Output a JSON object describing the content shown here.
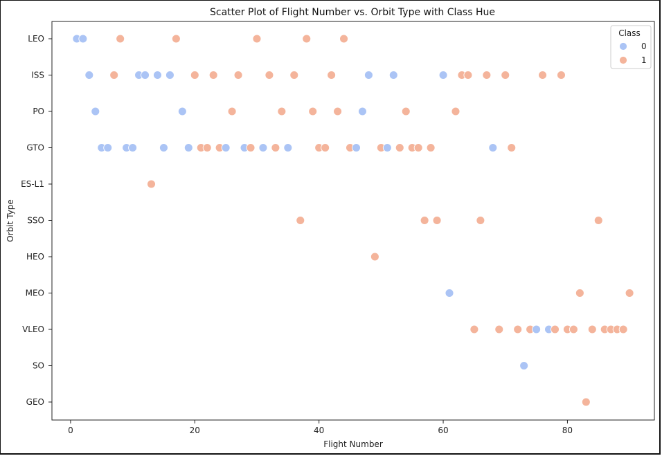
{
  "chart_data": {
    "type": "scatter",
    "title": "Scatter Plot of Flight Number vs. Orbit Type with Class Hue",
    "xlabel": "Flight Number",
    "ylabel": "Orbit Type",
    "xlim": [
      -3,
      94
    ],
    "xticks": [
      0,
      20,
      40,
      60,
      80
    ],
    "categories": [
      "LEO",
      "ISS",
      "PO",
      "GTO",
      "ES-L1",
      "SSO",
      "HEO",
      "MEO",
      "VLEO",
      "SO",
      "GEO"
    ],
    "grid": false,
    "legend": {
      "title": "Class",
      "placement": "top-right",
      "entries": [
        "0",
        "1"
      ]
    },
    "colors": {
      "0": "#abc4f5",
      "1": "#f4b49b"
    },
    "points": [
      {
        "x": 1,
        "y": "LEO",
        "class": 0
      },
      {
        "x": 2,
        "y": "LEO",
        "class": 0
      },
      {
        "x": 8,
        "y": "LEO",
        "class": 1
      },
      {
        "x": 17,
        "y": "LEO",
        "class": 1
      },
      {
        "x": 30,
        "y": "LEO",
        "class": 1
      },
      {
        "x": 38,
        "y": "LEO",
        "class": 1
      },
      {
        "x": 44,
        "y": "LEO",
        "class": 1
      },
      {
        "x": 3,
        "y": "ISS",
        "class": 0
      },
      {
        "x": 7,
        "y": "ISS",
        "class": 1
      },
      {
        "x": 11,
        "y": "ISS",
        "class": 0
      },
      {
        "x": 12,
        "y": "ISS",
        "class": 0
      },
      {
        "x": 14,
        "y": "ISS",
        "class": 0
      },
      {
        "x": 16,
        "y": "ISS",
        "class": 0
      },
      {
        "x": 20,
        "y": "ISS",
        "class": 1
      },
      {
        "x": 23,
        "y": "ISS",
        "class": 1
      },
      {
        "x": 27,
        "y": "ISS",
        "class": 1
      },
      {
        "x": 32,
        "y": "ISS",
        "class": 1
      },
      {
        "x": 36,
        "y": "ISS",
        "class": 1
      },
      {
        "x": 42,
        "y": "ISS",
        "class": 1
      },
      {
        "x": 48,
        "y": "ISS",
        "class": 0
      },
      {
        "x": 52,
        "y": "ISS",
        "class": 0
      },
      {
        "x": 60,
        "y": "ISS",
        "class": 0
      },
      {
        "x": 63,
        "y": "ISS",
        "class": 1
      },
      {
        "x": 64,
        "y": "ISS",
        "class": 1
      },
      {
        "x": 67,
        "y": "ISS",
        "class": 1
      },
      {
        "x": 70,
        "y": "ISS",
        "class": 1
      },
      {
        "x": 76,
        "y": "ISS",
        "class": 1
      },
      {
        "x": 79,
        "y": "ISS",
        "class": 1
      },
      {
        "x": 4,
        "y": "PO",
        "class": 0
      },
      {
        "x": 18,
        "y": "PO",
        "class": 0
      },
      {
        "x": 26,
        "y": "PO",
        "class": 1
      },
      {
        "x": 34,
        "y": "PO",
        "class": 1
      },
      {
        "x": 39,
        "y": "PO",
        "class": 1
      },
      {
        "x": 43,
        "y": "PO",
        "class": 1
      },
      {
        "x": 47,
        "y": "PO",
        "class": 0
      },
      {
        "x": 54,
        "y": "PO",
        "class": 1
      },
      {
        "x": 62,
        "y": "PO",
        "class": 1
      },
      {
        "x": 5,
        "y": "GTO",
        "class": 0
      },
      {
        "x": 6,
        "y": "GTO",
        "class": 0
      },
      {
        "x": 9,
        "y": "GTO",
        "class": 0
      },
      {
        "x": 10,
        "y": "GTO",
        "class": 0
      },
      {
        "x": 15,
        "y": "GTO",
        "class": 0
      },
      {
        "x": 19,
        "y": "GTO",
        "class": 0
      },
      {
        "x": 21,
        "y": "GTO",
        "class": 1
      },
      {
        "x": 22,
        "y": "GTO",
        "class": 1
      },
      {
        "x": 24,
        "y": "GTO",
        "class": 1
      },
      {
        "x": 25,
        "y": "GTO",
        "class": 0
      },
      {
        "x": 28,
        "y": "GTO",
        "class": 0
      },
      {
        "x": 29,
        "y": "GTO",
        "class": 1
      },
      {
        "x": 31,
        "y": "GTO",
        "class": 0
      },
      {
        "x": 33,
        "y": "GTO",
        "class": 1
      },
      {
        "x": 35,
        "y": "GTO",
        "class": 0
      },
      {
        "x": 40,
        "y": "GTO",
        "class": 1
      },
      {
        "x": 41,
        "y": "GTO",
        "class": 1
      },
      {
        "x": 45,
        "y": "GTO",
        "class": 1
      },
      {
        "x": 46,
        "y": "GTO",
        "class": 0
      },
      {
        "x": 50,
        "y": "GTO",
        "class": 1
      },
      {
        "x": 51,
        "y": "GTO",
        "class": 0
      },
      {
        "x": 53,
        "y": "GTO",
        "class": 1
      },
      {
        "x": 55,
        "y": "GTO",
        "class": 1
      },
      {
        "x": 56,
        "y": "GTO",
        "class": 1
      },
      {
        "x": 58,
        "y": "GTO",
        "class": 1
      },
      {
        "x": 68,
        "y": "GTO",
        "class": 0
      },
      {
        "x": 71,
        "y": "GTO",
        "class": 1
      },
      {
        "x": 13,
        "y": "ES-L1",
        "class": 1
      },
      {
        "x": 37,
        "y": "SSO",
        "class": 1
      },
      {
        "x": 57,
        "y": "SSO",
        "class": 1
      },
      {
        "x": 59,
        "y": "SSO",
        "class": 1
      },
      {
        "x": 66,
        "y": "SSO",
        "class": 1
      },
      {
        "x": 85,
        "y": "SSO",
        "class": 1
      },
      {
        "x": 49,
        "y": "HEO",
        "class": 1
      },
      {
        "x": 61,
        "y": "MEO",
        "class": 0
      },
      {
        "x": 82,
        "y": "MEO",
        "class": 1
      },
      {
        "x": 90,
        "y": "MEO",
        "class": 1
      },
      {
        "x": 65,
        "y": "VLEO",
        "class": 1
      },
      {
        "x": 69,
        "y": "VLEO",
        "class": 1
      },
      {
        "x": 72,
        "y": "VLEO",
        "class": 1
      },
      {
        "x": 74,
        "y": "VLEO",
        "class": 1
      },
      {
        "x": 75,
        "y": "VLEO",
        "class": 0
      },
      {
        "x": 77,
        "y": "VLEO",
        "class": 0
      },
      {
        "x": 78,
        "y": "VLEO",
        "class": 1
      },
      {
        "x": 80,
        "y": "VLEO",
        "class": 1
      },
      {
        "x": 81,
        "y": "VLEO",
        "class": 1
      },
      {
        "x": 84,
        "y": "VLEO",
        "class": 1
      },
      {
        "x": 86,
        "y": "VLEO",
        "class": 1
      },
      {
        "x": 87,
        "y": "VLEO",
        "class": 1
      },
      {
        "x": 88,
        "y": "VLEO",
        "class": 1
      },
      {
        "x": 89,
        "y": "VLEO",
        "class": 1
      },
      {
        "x": 73,
        "y": "SO",
        "class": 0
      },
      {
        "x": 83,
        "y": "GEO",
        "class": 1
      }
    ]
  }
}
